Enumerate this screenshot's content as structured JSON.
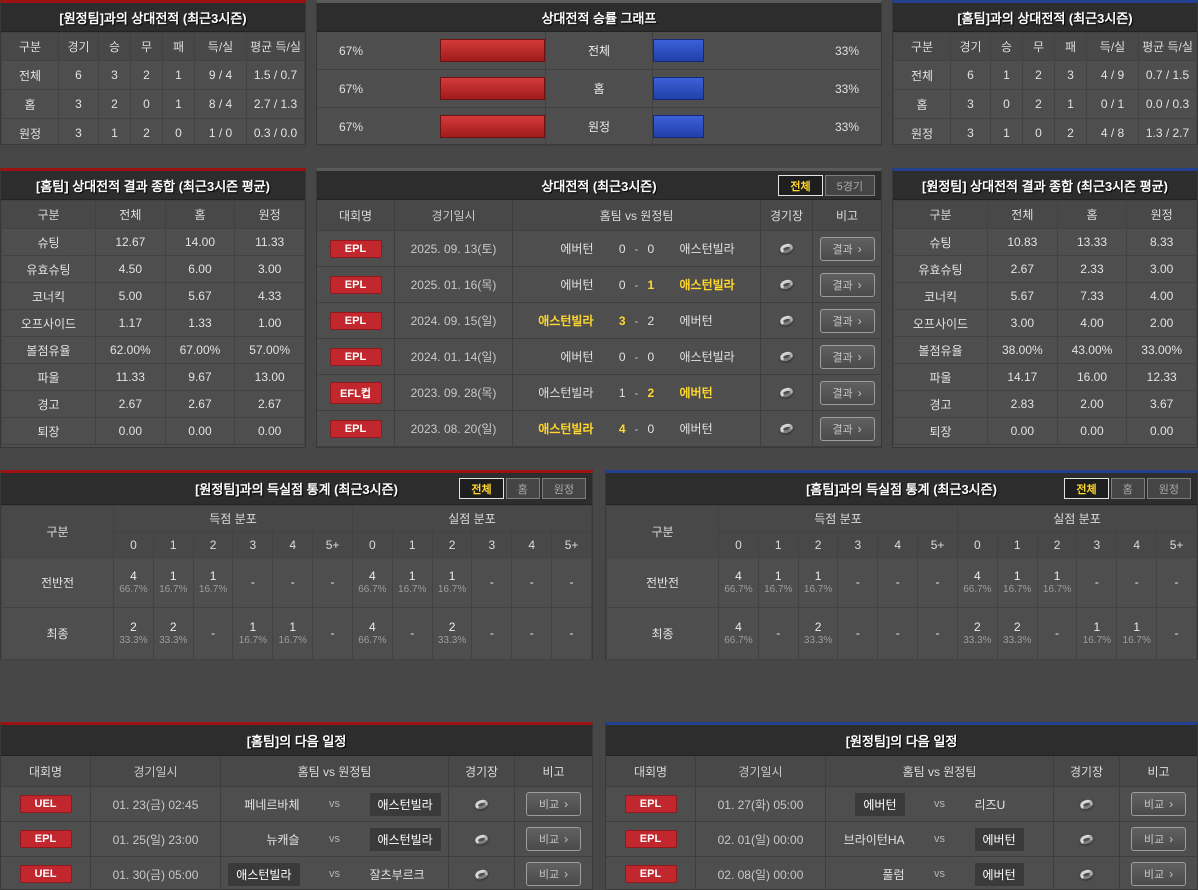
{
  "icons": {
    "chevron_right": "›"
  },
  "labels": {
    "vs": "vs"
  },
  "colors": {
    "home_accent": "#9e1113",
    "away_accent": "#23418f",
    "bar_red": "#bb2a2a",
    "bar_blue": "#2f55c8",
    "win_yellow": "#ffd72e",
    "badge_red": "#c1272d"
  },
  "record_vs_away": {
    "title": "[원정팀]과의 상대전적 (최근3시즌)",
    "headers": [
      "구분",
      "경기",
      "승",
      "무",
      "패",
      "득/실",
      "평균 득/실"
    ],
    "rows": [
      [
        "전체",
        "6",
        "3",
        "2",
        "1",
        "9 / 4",
        "1.5 / 0.7"
      ],
      [
        "홈",
        "3",
        "2",
        "0",
        "1",
        "8 / 4",
        "2.7 / 1.3"
      ],
      [
        "원정",
        "3",
        "1",
        "2",
        "0",
        "1 / 0",
        "0.3 / 0.0"
      ]
    ]
  },
  "win_chart": {
    "title": "상대전적 승률 그래프",
    "rows": [
      {
        "label": "전체",
        "left_pct": "67%",
        "left_value": 67,
        "right_pct": "33%",
        "right_value": 33
      },
      {
        "label": "홈",
        "left_pct": "67%",
        "left_value": 67,
        "right_pct": "33%",
        "right_value": 33
      },
      {
        "label": "원정",
        "left_pct": "67%",
        "left_value": 67,
        "right_pct": "33%",
        "right_value": 33
      }
    ]
  },
  "record_vs_home": {
    "title": "[홈팀]과의 상대전적 (최근3시즌)",
    "headers": [
      "구분",
      "경기",
      "승",
      "무",
      "패",
      "득/실",
      "평균 득/실"
    ],
    "rows": [
      [
        "전체",
        "6",
        "1",
        "2",
        "3",
        "4 / 9",
        "0.7 / 1.5"
      ],
      [
        "홈",
        "3",
        "0",
        "2",
        "1",
        "0 / 1",
        "0.0 / 0.3"
      ],
      [
        "원정",
        "3",
        "1",
        "0",
        "2",
        "4 / 8",
        "1.3 / 2.7"
      ]
    ]
  },
  "summary_home": {
    "title": "[홈팀] 상대전적 결과 종합 (최근3시즌 평균)",
    "headers": [
      "구분",
      "전체",
      "홈",
      "원정"
    ],
    "rows": [
      [
        "슈팅",
        "12.67",
        "14.00",
        "11.33"
      ],
      [
        "유효슈팅",
        "4.50",
        "6.00",
        "3.00"
      ],
      [
        "코너킥",
        "5.00",
        "5.67",
        "4.33"
      ],
      [
        "오프사이드",
        "1.17",
        "1.33",
        "1.00"
      ],
      [
        "볼점유율",
        "62.00%",
        "67.00%",
        "57.00%"
      ],
      [
        "파울",
        "11.33",
        "9.67",
        "13.00"
      ],
      [
        "경고",
        "2.67",
        "2.67",
        "2.67"
      ],
      [
        "퇴장",
        "0.00",
        "0.00",
        "0.00"
      ]
    ]
  },
  "summary_away": {
    "title": "[원정팀] 상대전적 결과 종합 (최근3시즌 평균)",
    "headers": [
      "구분",
      "전체",
      "홈",
      "원정"
    ],
    "rows": [
      [
        "슈팅",
        "10.83",
        "13.33",
        "8.33"
      ],
      [
        "유효슈팅",
        "2.67",
        "2.33",
        "3.00"
      ],
      [
        "코너킥",
        "5.67",
        "7.33",
        "4.00"
      ],
      [
        "오프사이드",
        "3.00",
        "4.00",
        "2.00"
      ],
      [
        "볼점유율",
        "38.00%",
        "43.00%",
        "33.00%"
      ],
      [
        "파울",
        "14.17",
        "16.00",
        "12.33"
      ],
      [
        "경고",
        "2.83",
        "2.00",
        "3.67"
      ],
      [
        "퇴장",
        "0.00",
        "0.00",
        "0.00"
      ]
    ]
  },
  "h2h": {
    "title": "상대전적 (최근3시즌)",
    "tabs": [
      {
        "label": "전체"
      },
      {
        "label": "5경기"
      }
    ],
    "headers": {
      "league": "대회명",
      "date": "경기일시",
      "teams": "홈팀  vs  원정팀",
      "stadium": "경기장",
      "note": "비고"
    },
    "button_label": "결과",
    "rows": [
      {
        "league": "EPL",
        "date": "2025. 09. 13(토)",
        "home": "에버턴",
        "home_cls": "",
        "hs": "0",
        "hs_cls": "",
        "as": "0",
        "as_cls": "",
        "away": "애스턴빌라",
        "away_cls": ""
      },
      {
        "league": "EPL",
        "date": "2025. 01. 16(목)",
        "home": "에버턴",
        "home_cls": "",
        "hs": "0",
        "hs_cls": "",
        "as": "1",
        "as_cls": "win",
        "away": "애스턴빌라",
        "away_cls": "win"
      },
      {
        "league": "EPL",
        "date": "2024. 09. 15(일)",
        "home": "애스턴빌라",
        "home_cls": "win",
        "hs": "3",
        "hs_cls": "win",
        "as": "2",
        "as_cls": "",
        "away": "에버턴",
        "away_cls": ""
      },
      {
        "league": "EPL",
        "date": "2024. 01. 14(일)",
        "home": "에버턴",
        "home_cls": "",
        "hs": "0",
        "hs_cls": "",
        "as": "0",
        "as_cls": "",
        "away": "애스턴빌라",
        "away_cls": ""
      },
      {
        "league": "EFL컵",
        "date": "2023. 09. 28(목)",
        "home": "애스턴빌라",
        "home_cls": "",
        "hs": "1",
        "hs_cls": "",
        "as": "2",
        "as_cls": "win",
        "away": "에버턴",
        "away_cls": "win"
      },
      {
        "league": "EPL",
        "date": "2023. 08. 20(일)",
        "home": "애스턴빌라",
        "home_cls": "win",
        "hs": "4",
        "hs_cls": "win",
        "as": "0",
        "as_cls": "",
        "away": "에버턴",
        "away_cls": ""
      }
    ]
  },
  "goals_vs_away": {
    "title": "[원정팀]과의 득실점 통계 (최근3시즌)",
    "tabs": [
      {
        "label": "전체"
      },
      {
        "label": "홈"
      },
      {
        "label": "원정"
      }
    ],
    "col_header": "구분",
    "scored_header": "득점 분포",
    "conceded_header": "실점 분포",
    "bins": [
      "0",
      "1",
      "2",
      "3",
      "4",
      "5+"
    ],
    "rows": [
      {
        "label": "전반전",
        "scored": [
          {
            "c": "4",
            "p": "66.7%"
          },
          {
            "c": "1",
            "p": "16.7%"
          },
          {
            "c": "1",
            "p": "16.7%"
          },
          {
            "c": "-",
            "p": ""
          },
          {
            "c": "-",
            "p": ""
          },
          {
            "c": "-",
            "p": ""
          }
        ],
        "conceded": [
          {
            "c": "4",
            "p": "66.7%"
          },
          {
            "c": "1",
            "p": "16.7%"
          },
          {
            "c": "1",
            "p": "16.7%"
          },
          {
            "c": "-",
            "p": ""
          },
          {
            "c": "-",
            "p": ""
          },
          {
            "c": "-",
            "p": ""
          }
        ]
      },
      {
        "label": "최종",
        "scored": [
          {
            "c": "2",
            "p": "33.3%"
          },
          {
            "c": "2",
            "p": "33.3%"
          },
          {
            "c": "-",
            "p": ""
          },
          {
            "c": "1",
            "p": "16.7%"
          },
          {
            "c": "1",
            "p": "16.7%"
          },
          {
            "c": "-",
            "p": ""
          }
        ],
        "conceded": [
          {
            "c": "4",
            "p": "66.7%"
          },
          {
            "c": "-",
            "p": ""
          },
          {
            "c": "2",
            "p": "33.3%"
          },
          {
            "c": "-",
            "p": ""
          },
          {
            "c": "-",
            "p": ""
          },
          {
            "c": "-",
            "p": ""
          }
        ]
      }
    ]
  },
  "goals_vs_home": {
    "title": "[홈팀]과의 득실점 통계 (최근3시즌)",
    "tabs": [
      {
        "label": "전체"
      },
      {
        "label": "홈"
      },
      {
        "label": "원정"
      }
    ],
    "col_header": "구분",
    "scored_header": "득점 분포",
    "conceded_header": "실점 분포",
    "bins": [
      "0",
      "1",
      "2",
      "3",
      "4",
      "5+"
    ],
    "rows": [
      {
        "label": "전반전",
        "scored": [
          {
            "c": "4",
            "p": "66.7%"
          },
          {
            "c": "1",
            "p": "16.7%"
          },
          {
            "c": "1",
            "p": "16.7%"
          },
          {
            "c": "-",
            "p": ""
          },
          {
            "c": "-",
            "p": ""
          },
          {
            "c": "-",
            "p": ""
          }
        ],
        "conceded": [
          {
            "c": "4",
            "p": "66.7%"
          },
          {
            "c": "1",
            "p": "16.7%"
          },
          {
            "c": "1",
            "p": "16.7%"
          },
          {
            "c": "-",
            "p": ""
          },
          {
            "c": "-",
            "p": ""
          },
          {
            "c": "-",
            "p": ""
          }
        ]
      },
      {
        "label": "최종",
        "scored": [
          {
            "c": "4",
            "p": "66.7%"
          },
          {
            "c": "-",
            "p": ""
          },
          {
            "c": "2",
            "p": "33.3%"
          },
          {
            "c": "-",
            "p": ""
          },
          {
            "c": "-",
            "p": ""
          },
          {
            "c": "-",
            "p": ""
          }
        ],
        "conceded": [
          {
            "c": "2",
            "p": "33.3%"
          },
          {
            "c": "2",
            "p": "33.3%"
          },
          {
            "c": "-",
            "p": ""
          },
          {
            "c": "1",
            "p": "16.7%"
          },
          {
            "c": "1",
            "p": "16.7%"
          },
          {
            "c": "-",
            "p": ""
          }
        ]
      }
    ]
  },
  "next_home": {
    "title": "[홈팀]의 다음 일정",
    "headers": {
      "league": "대회명",
      "date": "경기일시",
      "teams": "홈팀  vs  원정팀",
      "stadium": "경기장",
      "note": "비고"
    },
    "button_label": "비교",
    "rows": [
      {
        "league": "UEL",
        "date": "01. 23(금) 02:45",
        "home": "페네르바체",
        "home_cls": "",
        "away": "애스턴빌라",
        "away_cls": "hl"
      },
      {
        "league": "EPL",
        "date": "01. 25(일) 23:00",
        "home": "뉴캐슬",
        "home_cls": "",
        "away": "애스턴빌라",
        "away_cls": "hl"
      },
      {
        "league": "UEL",
        "date": "01. 30(금) 05:00",
        "home": "애스턴빌라",
        "home_cls": "hl",
        "away": "잘츠부르크",
        "away_cls": ""
      }
    ]
  },
  "next_away": {
    "title": "[원정팀]의 다음 일정",
    "headers": {
      "league": "대회명",
      "date": "경기일시",
      "teams": "홈팀  vs  원정팀",
      "stadium": "경기장",
      "note": "비고"
    },
    "button_label": "비교",
    "rows": [
      {
        "league": "EPL",
        "date": "01. 27(화) 05:00",
        "home": "에버턴",
        "home_cls": "hl",
        "away": "리즈U",
        "away_cls": ""
      },
      {
        "league": "EPL",
        "date": "02. 01(일) 00:00",
        "home": "브라이턴HA",
        "home_cls": "",
        "away": "에버턴",
        "away_cls": "hl"
      },
      {
        "league": "EPL",
        "date": "02. 08(일) 00:00",
        "home": "풀럼",
        "home_cls": "",
        "away": "에버턴",
        "away_cls": "hl"
      }
    ]
  }
}
